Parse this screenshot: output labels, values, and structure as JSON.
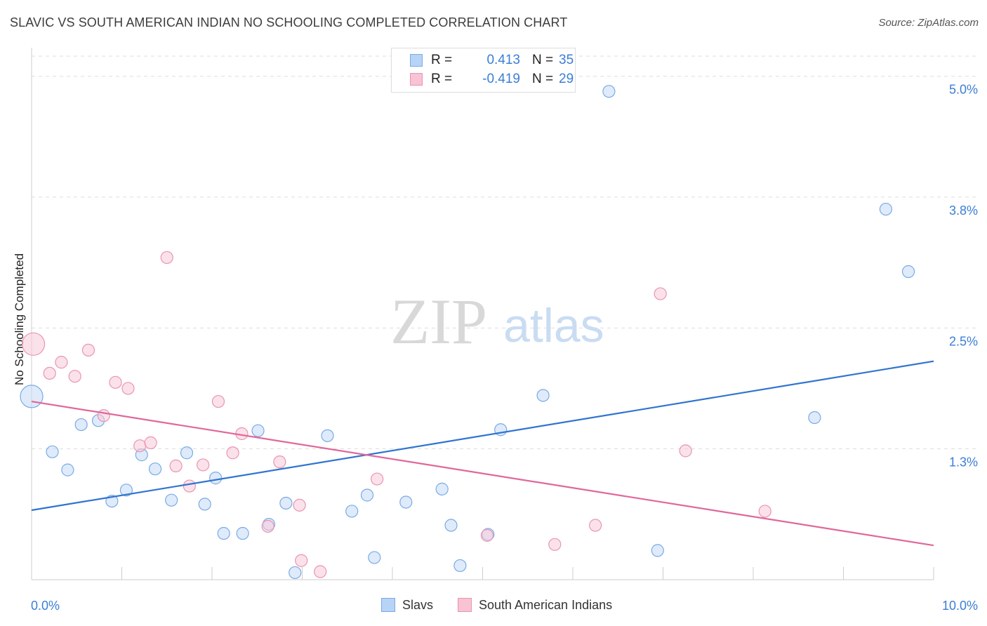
{
  "title": "SLAVIC VS SOUTH AMERICAN INDIAN NO SCHOOLING COMPLETED CORRELATION CHART",
  "source": "Source: ZipAtlas.com",
  "watermark": {
    "zip": "ZIP",
    "atlas": "atlas"
  },
  "legend": {
    "rows": [
      {
        "r_label": "R =",
        "r_value": "0.413",
        "n_label": "N =",
        "n_value": "35",
        "fill": "#b7d3f5",
        "stroke": "#7aaae6"
      },
      {
        "r_label": "R =",
        "r_value": "-0.419",
        "n_label": "N =",
        "n_value": "29",
        "fill": "#f8c3d3",
        "stroke": "#ea94b0"
      }
    ]
  },
  "bottom_legend": [
    {
      "label": "Slavs",
      "fill": "#b7d3f5",
      "stroke": "#7aaae6"
    },
    {
      "label": "South American Indians",
      "fill": "#f8c3d3",
      "stroke": "#ea94b0"
    }
  ],
  "chart_data": {
    "type": "scatter",
    "title": "SLAVIC VS SOUTH AMERICAN INDIAN NO SCHOOLING COMPLETED CORRELATION CHART",
    "xlabel": "",
    "ylabel": "No Schooling Completed",
    "xlim": [
      0,
      10
    ],
    "ylim": [
      0,
      5.2
    ],
    "x_tick_labels": [
      "0.0%",
      "10.0%"
    ],
    "y_ticks": [
      1.3,
      2.5,
      3.8,
      5.0
    ],
    "y_tick_labels": [
      "1.3%",
      "2.5%",
      "3.8%",
      "5.0%"
    ],
    "grid": "horizontal dashed",
    "legend_position": "top-center",
    "series": [
      {
        "name": "Slavs",
        "color": "#7aaae6",
        "fill": "#c5dbf6",
        "trend": {
          "x": [
            0,
            10
          ],
          "y": [
            0.69,
            2.17
          ],
          "color": "#2f74d0"
        },
        "points": [
          {
            "x": 0.0,
            "y": 1.82,
            "big": true
          },
          {
            "x": 0.23,
            "y": 1.27
          },
          {
            "x": 0.4,
            "y": 1.09
          },
          {
            "x": 0.55,
            "y": 1.54
          },
          {
            "x": 0.74,
            "y": 1.58
          },
          {
            "x": 0.89,
            "y": 0.78
          },
          {
            "x": 1.05,
            "y": 0.89
          },
          {
            "x": 1.22,
            "y": 1.24
          },
          {
            "x": 1.37,
            "y": 1.1
          },
          {
            "x": 1.55,
            "y": 0.79
          },
          {
            "x": 1.72,
            "y": 1.26
          },
          {
            "x": 1.92,
            "y": 0.75
          },
          {
            "x": 2.04,
            "y": 1.01
          },
          {
            "x": 2.13,
            "y": 0.46
          },
          {
            "x": 2.34,
            "y": 0.46
          },
          {
            "x": 2.51,
            "y": 1.48
          },
          {
            "x": 2.63,
            "y": 0.55
          },
          {
            "x": 2.82,
            "y": 0.76
          },
          {
            "x": 2.92,
            "y": 0.07
          },
          {
            "x": 3.28,
            "y": 1.43
          },
          {
            "x": 3.55,
            "y": 0.68
          },
          {
            "x": 3.72,
            "y": 0.84
          },
          {
            "x": 3.8,
            "y": 0.22
          },
          {
            "x": 4.15,
            "y": 0.77
          },
          {
            "x": 4.55,
            "y": 0.9
          },
          {
            "x": 4.65,
            "y": 0.54
          },
          {
            "x": 4.75,
            "y": 0.14
          },
          {
            "x": 5.06,
            "y": 0.45
          },
          {
            "x": 5.2,
            "y": 1.49
          },
          {
            "x": 5.67,
            "y": 1.83
          },
          {
            "x": 6.4,
            "y": 4.85
          },
          {
            "x": 6.94,
            "y": 0.29
          },
          {
            "x": 8.68,
            "y": 1.61
          },
          {
            "x": 9.47,
            "y": 3.68
          },
          {
            "x": 9.72,
            "y": 3.06
          }
        ]
      },
      {
        "name": "South American Indians",
        "color": "#ea94b0",
        "fill": "#f8cbd8",
        "trend": {
          "x": [
            0,
            10
          ],
          "y": [
            1.77,
            0.34
          ],
          "color": "#e0679a"
        },
        "points": [
          {
            "x": 0.02,
            "y": 2.34,
            "big": true
          },
          {
            "x": 0.2,
            "y": 2.05
          },
          {
            "x": 0.33,
            "y": 2.16
          },
          {
            "x": 0.48,
            "y": 2.02
          },
          {
            "x": 0.63,
            "y": 2.28
          },
          {
            "x": 0.93,
            "y": 1.96
          },
          {
            "x": 0.8,
            "y": 1.63
          },
          {
            "x": 1.07,
            "y": 1.9
          },
          {
            "x": 1.2,
            "y": 1.33
          },
          {
            "x": 1.32,
            "y": 1.36
          },
          {
            "x": 1.5,
            "y": 3.2
          },
          {
            "x": 1.6,
            "y": 1.13
          },
          {
            "x": 1.75,
            "y": 0.93
          },
          {
            "x": 1.9,
            "y": 1.14
          },
          {
            "x": 2.07,
            "y": 1.77
          },
          {
            "x": 2.23,
            "y": 1.26
          },
          {
            "x": 2.33,
            "y": 1.45
          },
          {
            "x": 2.62,
            "y": 0.53
          },
          {
            "x": 2.75,
            "y": 1.17
          },
          {
            "x": 2.97,
            "y": 0.74
          },
          {
            "x": 2.99,
            "y": 0.19
          },
          {
            "x": 3.2,
            "y": 0.08
          },
          {
            "x": 3.83,
            "y": 1.0
          },
          {
            "x": 5.05,
            "y": 0.44
          },
          {
            "x": 5.8,
            "y": 0.35
          },
          {
            "x": 6.25,
            "y": 0.54
          },
          {
            "x": 6.97,
            "y": 2.84
          },
          {
            "x": 7.25,
            "y": 1.28
          },
          {
            "x": 8.13,
            "y": 0.68
          }
        ]
      }
    ]
  }
}
